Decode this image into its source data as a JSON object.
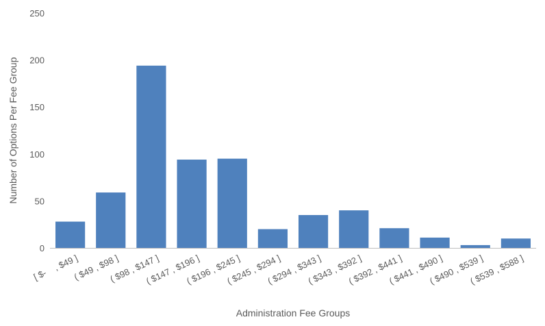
{
  "chart_data": {
    "type": "bar",
    "title": "",
    "xlabel": "Administration Fee Groups",
    "ylabel": "Number of Options Per Fee Group",
    "ylim": [
      0,
      250
    ],
    "yticks": [
      0,
      50,
      100,
      150,
      200,
      250
    ],
    "grid": false,
    "legend": "none",
    "bar_color": "#4F81BD",
    "categories": [
      "[ $-    , $49 ]",
      "( $49 , $98 ]",
      "( $98 , $147 ]",
      "( $147 , $196 ]",
      "( $196 , $245 ]",
      "( $245 , $294 ]",
      "( $294 , $343 ]",
      "( $343 , $392 ]",
      "( $392 , $441 ]",
      "( $441 , $490 ]",
      "( $490 , $539 ]",
      "( $539 , $588 ]"
    ],
    "values": [
      28,
      59,
      194,
      94,
      95,
      20,
      35,
      40,
      21,
      11,
      3,
      10
    ]
  }
}
